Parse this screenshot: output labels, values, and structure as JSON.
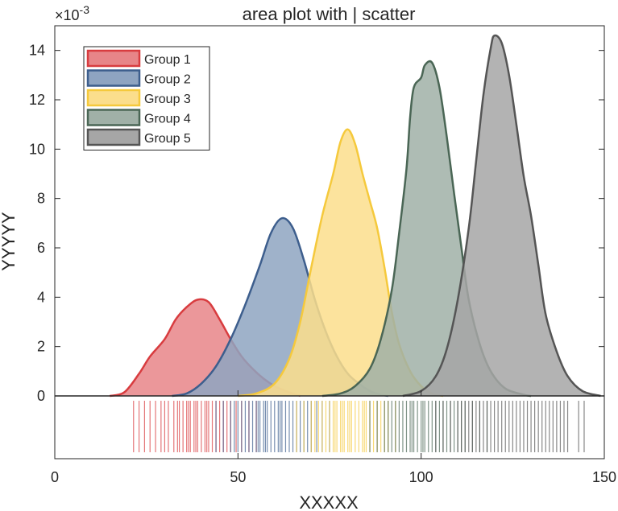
{
  "chart_data": {
    "type": "area",
    "title": "area plot with | scatter",
    "xlabel": "XXXXX",
    "ylabel": "YYYYY",
    "exponent_label": "×10",
    "exponent_value": "-3",
    "xlim": [
      0,
      150
    ],
    "ylim": [
      0,
      15
    ],
    "x_ticks": [
      "0",
      "50",
      "100",
      "150"
    ],
    "y_ticks": [
      "0",
      "2",
      "4",
      "6",
      "8",
      "10",
      "12",
      "14"
    ],
    "grid": false,
    "legend_position": "top-left",
    "series": [
      {
        "name": "Group 1",
        "color": "#d83c3f",
        "fill": "#e78588",
        "points": [
          [
            15,
            0
          ],
          [
            19,
            0.15
          ],
          [
            23,
            0.9
          ],
          [
            26,
            1.6
          ],
          [
            30,
            2.3
          ],
          [
            33,
            3.1
          ],
          [
            36,
            3.6
          ],
          [
            39,
            3.9
          ],
          [
            42,
            3.8
          ],
          [
            45,
            3.1
          ],
          [
            48,
            2.3
          ],
          [
            51,
            1.6
          ],
          [
            54,
            1.1
          ],
          [
            57,
            0.7
          ],
          [
            60,
            0.4
          ],
          [
            63,
            0.2
          ],
          [
            65,
            0.1
          ],
          [
            67,
            0
          ]
        ],
        "scatter": [
          21.5,
          23,
          24.5,
          26,
          27.5,
          29,
          30,
          31,
          32.5,
          33.5,
          34,
          35,
          36,
          36.5,
          37,
          38,
          38.5,
          39,
          40,
          41,
          41.5,
          42,
          43,
          44,
          45,
          46,
          47,
          48,
          49.5,
          51,
          53,
          55
        ]
      },
      {
        "name": "Group 2",
        "color": "#3d5e8d",
        "fill": "#8ea4c1",
        "points": [
          [
            32,
            0
          ],
          [
            36,
            0.1
          ],
          [
            40,
            0.5
          ],
          [
            44,
            1.2
          ],
          [
            48,
            2.3
          ],
          [
            52,
            3.7
          ],
          [
            56,
            5.3
          ],
          [
            59,
            6.6
          ],
          [
            62,
            7.2
          ],
          [
            65,
            6.8
          ],
          [
            68,
            5.5
          ],
          [
            71,
            3.9
          ],
          [
            74,
            2.6
          ],
          [
            77,
            1.6
          ],
          [
            80,
            0.9
          ],
          [
            83,
            0.5
          ],
          [
            86,
            0.2
          ],
          [
            89,
            0.05
          ],
          [
            91,
            0
          ]
        ],
        "scatter": [
          44,
          46,
          48,
          49,
          50,
          51,
          52,
          53,
          54,
          55,
          55.5,
          56,
          57,
          57.5,
          58,
          59,
          60,
          61,
          61.5,
          62,
          63,
          64,
          65,
          66,
          67,
          68,
          69,
          70,
          71.5,
          73,
          75
        ]
      },
      {
        "name": "Group 3",
        "color": "#f5c93c",
        "fill": "#fbde8c",
        "points": [
          [
            50,
            0
          ],
          [
            55,
            0.1
          ],
          [
            60,
            0.5
          ],
          [
            64,
            1.5
          ],
          [
            67,
            3.0
          ],
          [
            70,
            5.2
          ],
          [
            73,
            7.3
          ],
          [
            76,
            9.0
          ],
          [
            78,
            10.3
          ],
          [
            80,
            10.8
          ],
          [
            82,
            10.2
          ],
          [
            84,
            9.0
          ],
          [
            86,
            7.9
          ],
          [
            88,
            6.8
          ],
          [
            90,
            5.2
          ],
          [
            92,
            3.4
          ],
          [
            94,
            2.1
          ],
          [
            97,
            1.0
          ],
          [
            100,
            0.4
          ],
          [
            103,
            0.1
          ],
          [
            106,
            0
          ]
        ],
        "scatter": [
          66,
          68,
          70,
          71,
          72,
          73,
          74,
          75,
          76,
          76.5,
          77,
          78,
          78.5,
          79,
          80,
          80.5,
          81,
          82,
          83,
          84,
          84.5,
          85,
          86,
          87,
          88,
          89,
          90,
          91,
          93
        ]
      },
      {
        "name": "Group 4",
        "color": "#4a6655",
        "fill": "#a0b0a7",
        "points": [
          [
            73,
            0
          ],
          [
            78,
            0.1
          ],
          [
            82,
            0.4
          ],
          [
            86,
            1.1
          ],
          [
            89,
            2.3
          ],
          [
            92,
            4.3
          ],
          [
            94,
            6.6
          ],
          [
            96,
            9.2
          ],
          [
            97,
            11.3
          ],
          [
            98,
            12.5
          ],
          [
            100,
            12.9
          ],
          [
            101,
            13.4
          ],
          [
            103,
            13.5
          ],
          [
            105,
            12.5
          ],
          [
            107,
            10.5
          ],
          [
            109,
            8.2
          ],
          [
            111,
            6.0
          ],
          [
            113,
            3.9
          ],
          [
            116,
            2.1
          ],
          [
            119,
            1.0
          ],
          [
            123,
            0.3
          ],
          [
            128,
            0.05
          ],
          [
            130,
            0
          ]
        ],
        "scatter": [
          86,
          88,
          90,
          91,
          92,
          93,
          94,
          95,
          96,
          97,
          97.5,
          98,
          99,
          100,
          100.5,
          101,
          102,
          103,
          104,
          105,
          106,
          107,
          108,
          109,
          110,
          111,
          112,
          114,
          116,
          118
        ]
      },
      {
        "name": "Group 5",
        "color": "#555555",
        "fill": "#a6a6a6",
        "points": [
          [
            95,
            0
          ],
          [
            100,
            0.2
          ],
          [
            104,
            0.8
          ],
          [
            107,
            1.9
          ],
          [
            110,
            3.9
          ],
          [
            113,
            6.8
          ],
          [
            115,
            9.5
          ],
          [
            117,
            12.2
          ],
          [
            119,
            14.1
          ],
          [
            120,
            14.6
          ],
          [
            122,
            14.3
          ],
          [
            124,
            13.0
          ],
          [
            126,
            11.0
          ],
          [
            128,
            8.9
          ],
          [
            130,
            7.3
          ],
          [
            132,
            5.3
          ],
          [
            134,
            3.3
          ],
          [
            137,
            1.8
          ],
          [
            140,
            0.8
          ],
          [
            144,
            0.2
          ],
          [
            149,
            0
          ]
        ],
        "scatter": [
          104,
          106,
          108,
          110,
          111,
          112,
          113,
          114,
          115,
          116,
          117,
          118,
          119,
          120,
          121,
          122,
          123,
          124,
          125,
          126,
          127,
          128,
          129,
          130,
          131,
          132,
          133,
          134,
          135,
          136,
          137,
          138,
          139,
          140,
          143,
          144.5
        ]
      }
    ]
  }
}
